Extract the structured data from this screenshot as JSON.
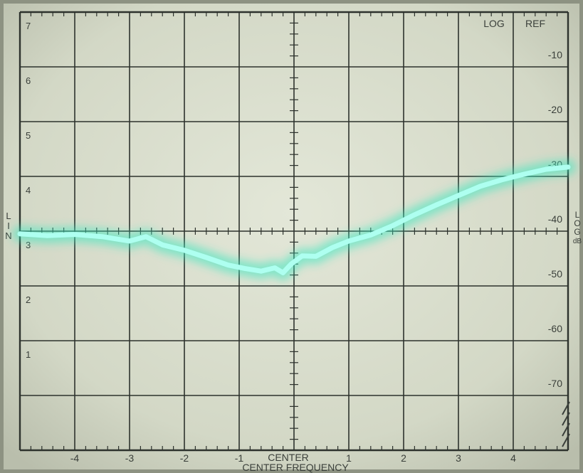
{
  "chart_data": {
    "type": "line",
    "title": "",
    "xlabel": "CENTER FREQUENCY",
    "ylabel_left": "LIN",
    "ylabel_right": "LOG dB",
    "header_labels": [
      "LOG",
      "REF"
    ],
    "x_ticks": [
      -4,
      -3,
      -2,
      -1,
      1,
      2,
      3,
      4
    ],
    "x_tick_labels": [
      "-4",
      "-3",
      "-2",
      "-1",
      "1",
      "2",
      "3",
      "4"
    ],
    "center_label": "CENTER",
    "lin_ticks": [
      "7",
      "6",
      "5",
      "4",
      "3",
      "2",
      "1"
    ],
    "lin_values": [
      7,
      6,
      5,
      4,
      3,
      2,
      1
    ],
    "db_ticks": [
      "-10",
      "-20",
      "-30",
      "-40",
      "-50",
      "-60",
      "-70"
    ],
    "db_values": [
      -10,
      -20,
      -30,
      -40,
      -50,
      -60,
      -70
    ],
    "xlim": [
      -5,
      5
    ],
    "ylim": [
      -80,
      0
    ],
    "grid": true,
    "colors": {
      "trace": "#aefff0",
      "glow": "#38e8c0",
      "graticule": "#2a2f2a",
      "screen": "#d7dccb"
    },
    "series": [
      {
        "name": "",
        "x": [
          -5,
          -4.5,
          -4,
          -3.5,
          -3,
          -2.7,
          -2.4,
          -2,
          -1.6,
          -1.2,
          -0.9,
          -0.6,
          -0.35,
          -0.2,
          -0.05,
          0.15,
          0.4,
          0.7,
          1,
          1.4,
          1.8,
          2.2,
          2.6,
          3,
          3.4,
          3.8,
          4.2,
          4.6,
          5
        ],
        "y": [
          -40.5,
          -40.8,
          -40.6,
          -41,
          -41.8,
          -41,
          -42.5,
          -43.5,
          -44.8,
          -46.2,
          -46.8,
          -47.3,
          -46.7,
          -47.6,
          -46,
          -44.5,
          -44.6,
          -43,
          -41.8,
          -40.7,
          -39,
          -37,
          -35.2,
          -33.5,
          -31.8,
          -30.6,
          -29.6,
          -28.7,
          -28.3
        ]
      }
    ]
  }
}
